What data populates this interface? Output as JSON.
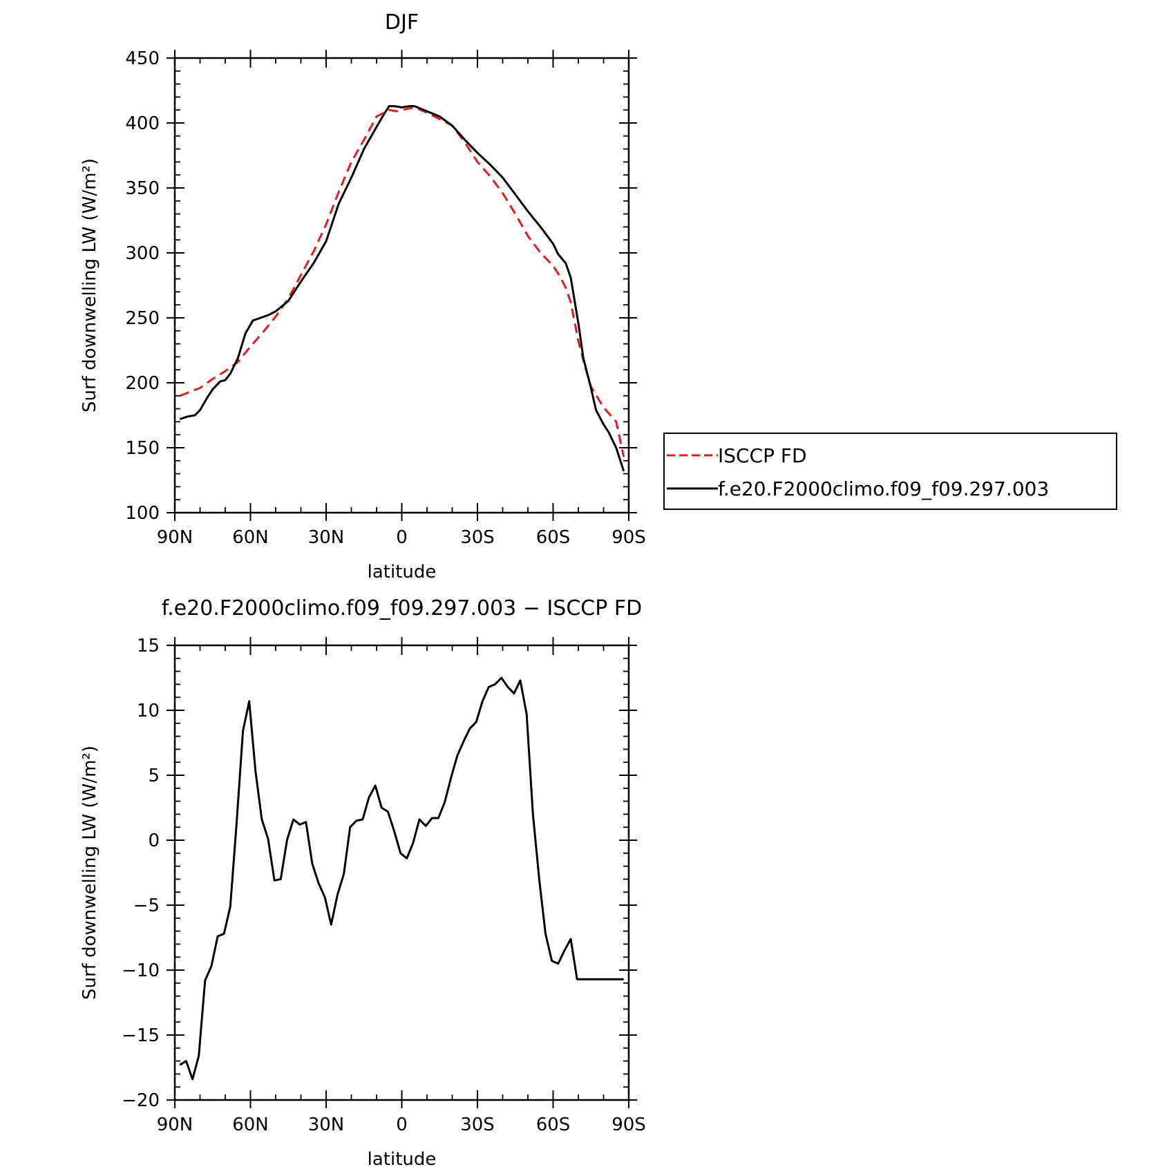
{
  "chart_data": [
    {
      "type": "line",
      "title": "DJF",
      "xlabel": "latitude",
      "ylabel": "Surf downwelling LW (W/m²)",
      "xlim": [
        90,
        -90
      ],
      "ylim": [
        100,
        450
      ],
      "x_ticks": [
        90,
        60,
        30,
        0,
        -30,
        -60,
        -90
      ],
      "x_tick_labels": [
        "90N",
        "60N",
        "30N",
        "0",
        "30S",
        "60S",
        "90S"
      ],
      "y_ticks": [
        100,
        150,
        200,
        250,
        300,
        350,
        400,
        450
      ],
      "y_tick_labels": [
        "100",
        "150",
        "200",
        "250",
        "300",
        "350",
        "400",
        "450"
      ],
      "legend_position": "right",
      "series": [
        {
          "name": "ISCCP FD",
          "style": "dashed",
          "color": "#e41a1c",
          "x": [
            88,
            80,
            75,
            70,
            65,
            60,
            55,
            50,
            45,
            40,
            35,
            30,
            25,
            20,
            15,
            10,
            5,
            2,
            0,
            -5,
            -10,
            -15,
            -20,
            -25,
            -30,
            -35,
            -40,
            -45,
            -50,
            -55,
            -60,
            -63,
            -65,
            -67,
            -70,
            -73,
            -75,
            -80,
            -85,
            -88
          ],
          "values": [
            190,
            196,
            203,
            209,
            216,
            228,
            239,
            251,
            265,
            283,
            301,
            322,
            347,
            370,
            387,
            405,
            410,
            409,
            410,
            412,
            408,
            403,
            398,
            385,
            370,
            359,
            346,
            330,
            313,
            300,
            290,
            281,
            273,
            262,
            232,
            210,
            197,
            181,
            170,
            143
          ]
        },
        {
          "name": "f.e20.F2000climo.f09_f09.297.003",
          "style": "solid",
          "color": "#000000",
          "x": [
            88,
            85,
            82,
            80,
            77,
            75,
            72,
            70,
            68,
            65,
            62,
            59,
            56,
            53,
            50,
            45,
            40,
            35,
            30,
            25,
            20,
            15,
            10,
            7,
            5,
            3,
            0,
            -3,
            -5,
            -10,
            -15,
            -20,
            -25,
            -30,
            -35,
            -40,
            -45,
            -50,
            -55,
            -60,
            -62,
            -65,
            -67,
            -70,
            -72,
            -75,
            -77,
            -80,
            -82,
            -85,
            -88
          ],
          "values": [
            172,
            174,
            175,
            179,
            189,
            195,
            201,
            202,
            207,
            219,
            238,
            248,
            250,
            252,
            255,
            263,
            278,
            292,
            309,
            338,
            358,
            380,
            397,
            407,
            413,
            413,
            412,
            413,
            413,
            409,
            405,
            398,
            387,
            377,
            368,
            358,
            345,
            332,
            320,
            307,
            299,
            292,
            281,
            246,
            219,
            196,
            179,
            168,
            162,
            150,
            132
          ]
        }
      ]
    },
    {
      "type": "line",
      "title": "f.e20.F2000climo.f09_f09.297.003 − ISCCP FD",
      "xlabel": "latitude",
      "ylabel": "Surf downwelling LW (W/m²)",
      "xlim": [
        90,
        -90
      ],
      "ylim": [
        -20,
        15
      ],
      "x_ticks": [
        90,
        60,
        30,
        0,
        -30,
        -60,
        -90
      ],
      "x_tick_labels": [
        "90N",
        "60N",
        "30N",
        "0",
        "30S",
        "60S",
        "90S"
      ],
      "y_ticks": [
        -20,
        -15,
        -10,
        -5,
        0,
        5,
        10,
        15
      ],
      "y_tick_labels": [
        "−20",
        "−15",
        "−10",
        "−5",
        "0",
        "5",
        "10",
        "15"
      ],
      "series": [
        {
          "style": "solid",
          "color": "#000000",
          "x": [
            88,
            85.5,
            83,
            80.5,
            78,
            75.5,
            73,
            70.5,
            68,
            65.5,
            63,
            60.5,
            58,
            55.5,
            53,
            50.5,
            48,
            45.5,
            43,
            40.5,
            38,
            35.5,
            33,
            30.5,
            28,
            25.5,
            23,
            20.5,
            18,
            15.5,
            13,
            10.5,
            8,
            5.5,
            3,
            0.5,
            -2,
            -4.5,
            -7,
            -9.5,
            -12,
            -14.5,
            -17,
            -19.5,
            -22,
            -24.5,
            -27,
            -29.5,
            -32,
            -34.5,
            -37,
            -39.5,
            -42,
            -44.5,
            -47,
            -49.5,
            -52,
            -54.5,
            -57,
            -59.5,
            -62,
            -64.5,
            -67,
            -69.5,
            -72,
            -74.5,
            -77,
            -79.5,
            -82,
            -84.5,
            -87,
            -88
          ],
          "values": [
            -17.3,
            -17.0,
            -18.4,
            -16.6,
            -10.8,
            -9.7,
            -7.4,
            -7.2,
            -5.1,
            1.3,
            8.4,
            10.7,
            5.3,
            1.6,
            0.1,
            -3.1,
            -3.0,
            0.0,
            1.6,
            1.2,
            1.4,
            -1.8,
            -3.3,
            -4.4,
            -6.5,
            -4.2,
            -2.6,
            1.0,
            1.5,
            1.6,
            3.3,
            4.2,
            2.5,
            2.2,
            0.7,
            -1.0,
            -1.4,
            -0.2,
            1.6,
            1.1,
            1.7,
            1.7,
            2.9,
            4.8,
            6.5,
            7.6,
            8.6,
            9.1,
            10.7,
            11.8,
            12.0,
            12.5,
            11.8,
            11.3,
            12.3,
            9.7,
            2.0,
            -3.0,
            -7.2,
            -9.3,
            -9.5,
            -8.5,
            -7.6,
            -10.7,
            -10.7,
            -10.7,
            -10.7,
            -10.7,
            -10.7,
            -10.7,
            -10.7,
            -10.7
          ]
        }
      ]
    }
  ]
}
